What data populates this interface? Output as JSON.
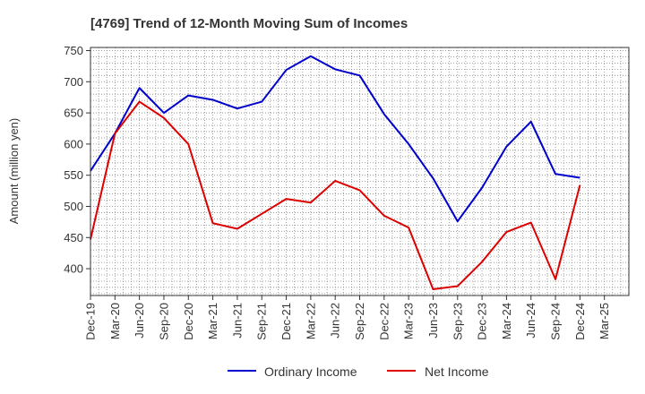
{
  "chart_data": {
    "type": "line",
    "title": "[4769]  Trend of 12-Month Moving Sum of Incomes",
    "xlabel": "",
    "ylabel": "Amount (million yen)",
    "ylim": [
      357,
      755
    ],
    "yticks": [
      400,
      450,
      500,
      550,
      600,
      650,
      700,
      750
    ],
    "categories": [
      "Dec-19",
      "Mar-20",
      "Jun-20",
      "Sep-20",
      "Dec-20",
      "Mar-21",
      "Jun-21",
      "Sep-21",
      "Dec-21",
      "Mar-22",
      "Jun-22",
      "Sep-22",
      "Dec-22",
      "Mar-23",
      "Jun-23",
      "Sep-23",
      "Dec-23",
      "Mar-24",
      "Jun-24",
      "Sep-24",
      "Dec-24",
      "Mar-25"
    ],
    "grid": true,
    "legend_position": "bottom",
    "series": [
      {
        "name": "Ordinary Income",
        "color": "#0000cc",
        "values": [
          557,
          617,
          690,
          650,
          678,
          671,
          657,
          668,
          719,
          741,
          720,
          710,
          648,
          600,
          545,
          476,
          530,
          596,
          636,
          552,
          546,
          null
        ]
      },
      {
        "name": "Net Income",
        "color": "#dd0000",
        "values": [
          447,
          617,
          668,
          642,
          600,
          473,
          464,
          488,
          512,
          506,
          541,
          526,
          485,
          466,
          367,
          372,
          411,
          459,
          474,
          383,
          534,
          null
        ]
      }
    ]
  }
}
